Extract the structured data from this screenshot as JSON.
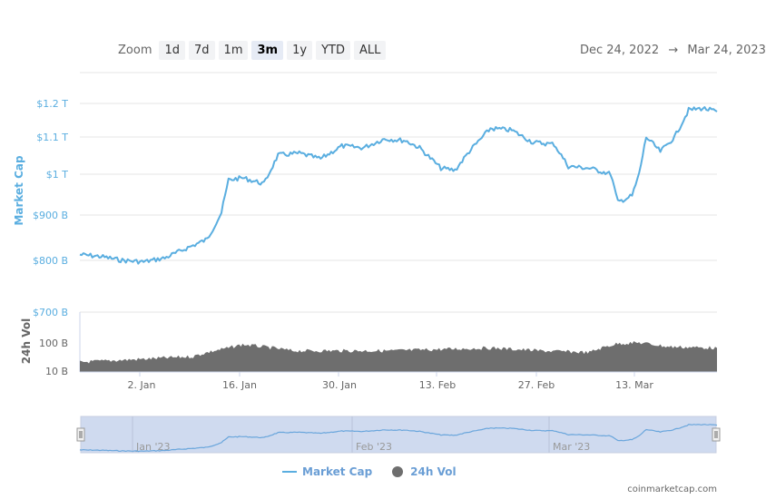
{
  "toolbar": {
    "zoom_label": "Zoom",
    "buttons": [
      "1d",
      "7d",
      "1m",
      "3m",
      "1y",
      "YTD",
      "ALL"
    ],
    "active": "3m"
  },
  "range": {
    "from": "Dec 24, 2022",
    "arrow": "→",
    "to": "Mar 24, 2023"
  },
  "legend": {
    "market_cap": "Market Cap",
    "vol": "24h Vol"
  },
  "credit": "coinmarketcap.com",
  "colors": {
    "market_cap": "#5aaee0",
    "volume": "#6e6e6e",
    "navigator_bg": "#cfdaef"
  },
  "chart_data": {
    "type": "line",
    "title": "",
    "date_range": [
      "Dec 24, 2022",
      "Mar 24, 2023"
    ],
    "x_ticks": [
      "2. Jan",
      "16. Jan",
      "30. Jan",
      "13. Feb",
      "27. Feb",
      "13. Mar"
    ],
    "navigator_labels": [
      "Jan '23",
      "Feb '23",
      "Mar '23"
    ],
    "axes": {
      "market_cap": {
        "label": "Market Cap",
        "ticks": [
          "$800 B",
          "$900 B",
          "$1 T",
          "$1.1 T",
          "$1.2 T"
        ],
        "scale": "log"
      },
      "volume": {
        "label": "24h Vol",
        "ticks": [
          "10 B",
          "100 B",
          "$700 B"
        ],
        "scale": "log"
      }
    },
    "series": [
      {
        "name": "Market Cap",
        "unit": "B USD",
        "x": [
          "Dec 24",
          "Dec 27",
          "Dec 30",
          "Jan 2",
          "Jan 5",
          "Jan 8",
          "Jan 11",
          "Jan 13",
          "Jan 14",
          "Jan 16",
          "Jan 19",
          "Jan 21",
          "Jan 24",
          "Jan 27",
          "Jan 30",
          "Feb 2",
          "Feb 5",
          "Feb 8",
          "Feb 10",
          "Feb 13",
          "Feb 15",
          "Feb 17",
          "Feb 20",
          "Feb 23",
          "Feb 26",
          "Mar 1",
          "Mar 3",
          "Mar 6",
          "Mar 9",
          "Mar 10",
          "Mar 12",
          "Mar 13",
          "Mar 14",
          "Mar 16",
          "Mar 18",
          "Mar 20",
          "Mar 22",
          "Mar 24"
        ],
        "values": [
          812,
          808,
          800,
          797,
          805,
          825,
          845,
          905,
          985,
          990,
          975,
          1050,
          1055,
          1040,
          1075,
          1070,
          1095,
          1090,
          1070,
          1015,
          1010,
          1060,
          1125,
          1120,
          1085,
          1080,
          1020,
          1015,
          1000,
          930,
          945,
          1000,
          1100,
          1060,
          1100,
          1180,
          1185,
          1175
        ]
      },
      {
        "name": "24h Vol",
        "unit": "B USD",
        "x": [
          "Dec 24",
          "Jan 2",
          "Jan 9",
          "Jan 14",
          "Jan 16",
          "Jan 23",
          "Jan 30",
          "Feb 6",
          "Feb 13",
          "Feb 20",
          "Feb 27",
          "Mar 6",
          "Mar 10",
          "Mar 13",
          "Mar 17",
          "Mar 24"
        ],
        "values": [
          20,
          25,
          30,
          55,
          70,
          45,
          45,
          45,
          50,
          55,
          45,
          40,
          75,
          80,
          60,
          55
        ]
      }
    ]
  }
}
